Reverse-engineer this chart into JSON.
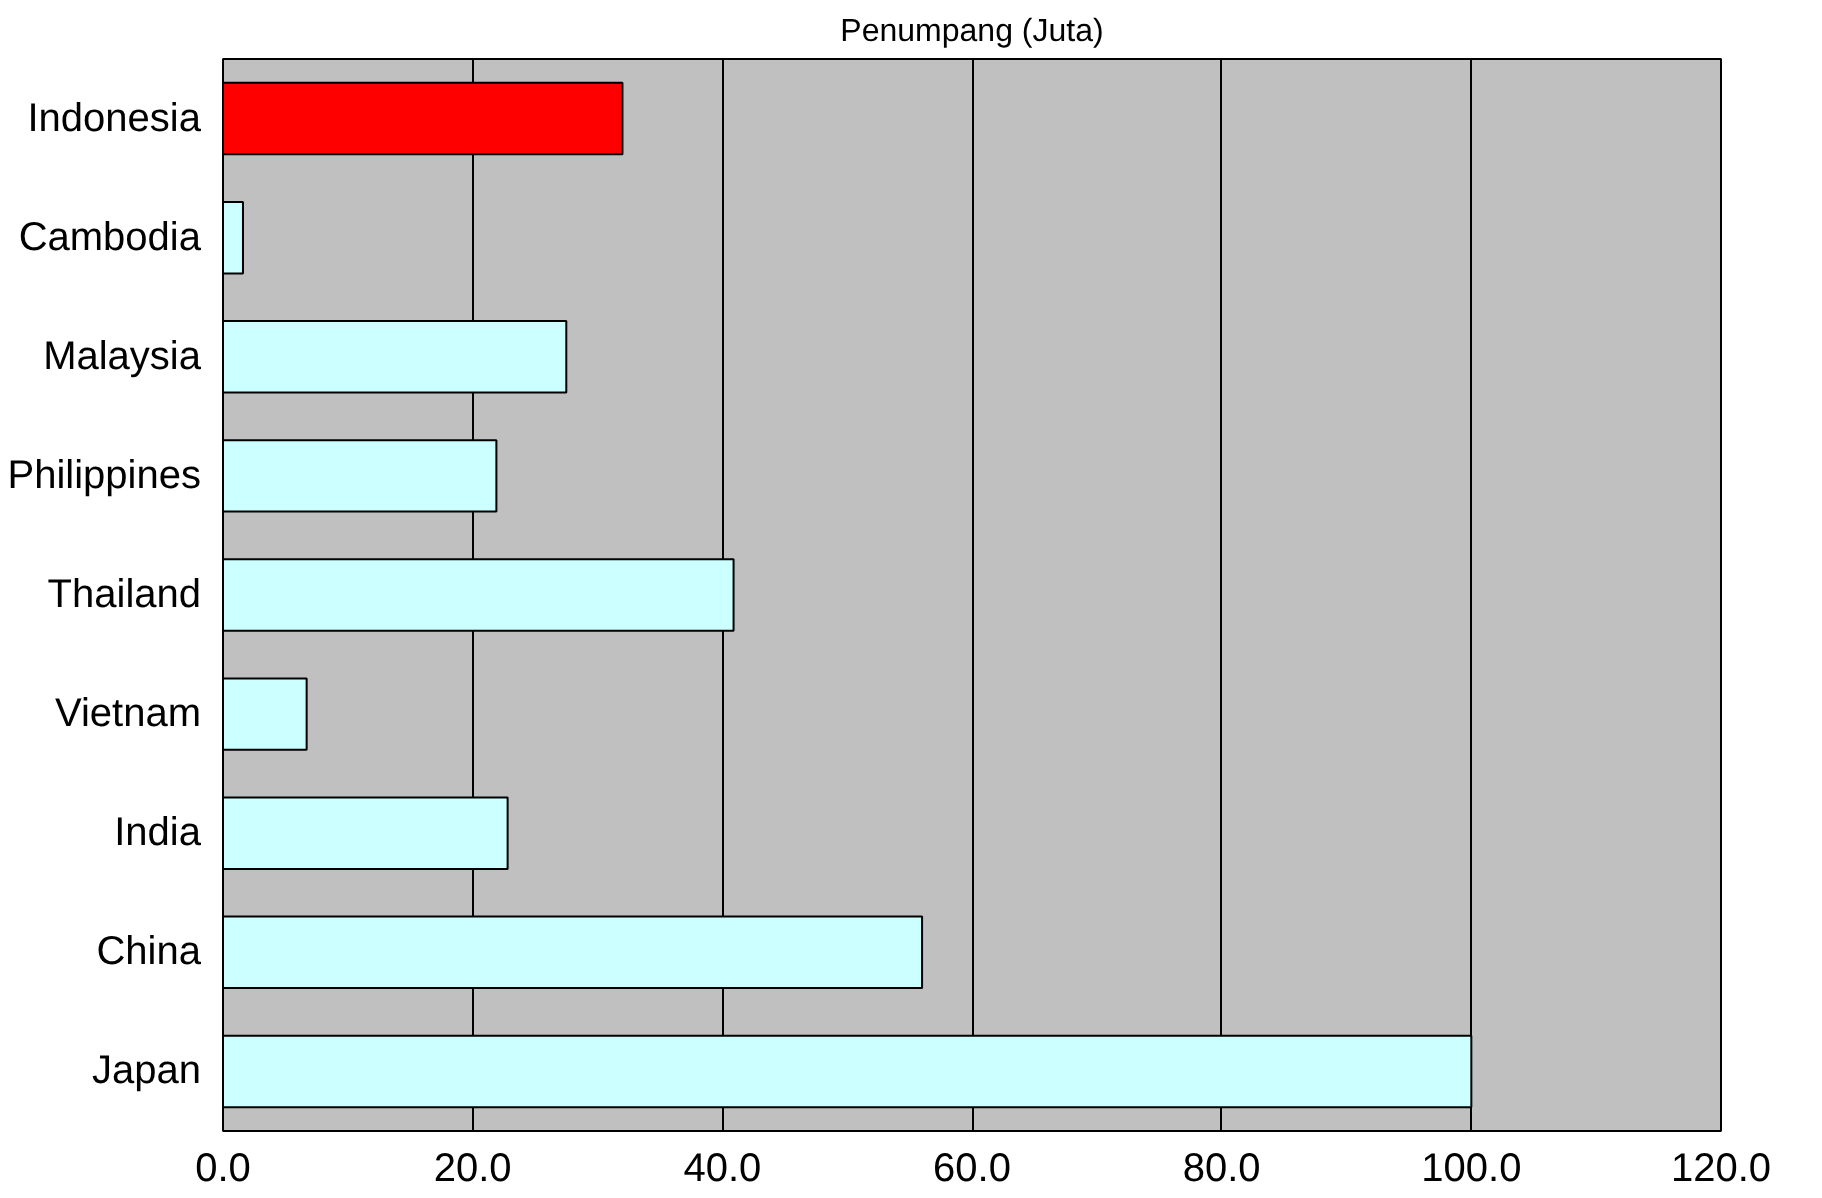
{
  "chart_data": {
    "type": "bar",
    "orientation": "horizontal",
    "title": "Penumpang (Juta)",
    "categories": [
      "Indonesia",
      "Cambodia",
      "Malaysia",
      "Philippines",
      "Thailand",
      "Vietnam",
      "India",
      "China",
      "Japan"
    ],
    "values": [
      32.0,
      1.6,
      27.5,
      21.9,
      40.9,
      6.7,
      22.8,
      56.0,
      100.0
    ],
    "colors": [
      "#ff0000",
      "#ccffff",
      "#ccffff",
      "#ccffff",
      "#ccffff",
      "#ccffff",
      "#ccffff",
      "#ccffff",
      "#ccffff"
    ],
    "xlim": [
      0,
      120
    ],
    "xticks": [
      {
        "value": 0,
        "label": "0.0"
      },
      {
        "value": 20,
        "label": "20.0"
      },
      {
        "value": 40,
        "label": "40.0"
      },
      {
        "value": 60,
        "label": "60.0"
      },
      {
        "value": 80,
        "label": "80.0"
      },
      {
        "value": 100,
        "label": "100.0"
      },
      {
        "value": 120,
        "label": "120.0"
      }
    ],
    "grid": "x"
  }
}
